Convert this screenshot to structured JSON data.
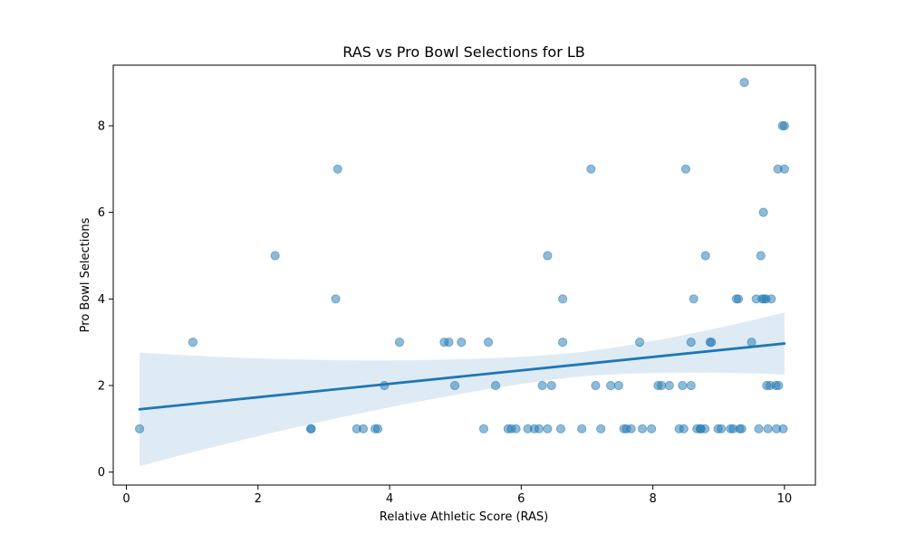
{
  "chart_data": {
    "type": "scatter",
    "title": "RAS vs Pro Bowl Selections for LB",
    "xlabel": "Relative Athletic Score (RAS)",
    "ylabel": "Pro Bowl Selections",
    "xlim": [
      -0.2,
      10.47
    ],
    "ylim": [
      -0.3,
      9.4
    ],
    "xticks": [
      0,
      2,
      4,
      6,
      8,
      10
    ],
    "yticks": [
      0,
      2,
      4,
      6,
      8
    ],
    "grid": false,
    "point_color": "#1f77b4",
    "band_color": "#1f77b4",
    "points": [
      [
        0.2,
        1
      ],
      [
        1.01,
        3
      ],
      [
        2.26,
        5
      ],
      [
        2.8,
        1
      ],
      [
        2.81,
        1
      ],
      [
        3.18,
        4
      ],
      [
        3.21,
        7
      ],
      [
        3.5,
        1
      ],
      [
        3.6,
        1
      ],
      [
        3.78,
        1
      ],
      [
        3.82,
        1
      ],
      [
        3.92,
        2
      ],
      [
        4.15,
        3
      ],
      [
        4.83,
        3
      ],
      [
        4.9,
        3
      ],
      [
        4.99,
        2
      ],
      [
        5.09,
        3
      ],
      [
        5.43,
        1
      ],
      [
        5.5,
        3
      ],
      [
        5.61,
        2
      ],
      [
        5.8,
        1
      ],
      [
        5.85,
        1
      ],
      [
        5.92,
        1
      ],
      [
        6.1,
        1
      ],
      [
        6.2,
        1
      ],
      [
        6.27,
        1
      ],
      [
        6.32,
        2
      ],
      [
        6.4,
        1
      ],
      [
        6.4,
        5
      ],
      [
        6.46,
        2
      ],
      [
        6.6,
        1
      ],
      [
        6.63,
        4
      ],
      [
        6.63,
        3
      ],
      [
        6.92,
        1
      ],
      [
        7.06,
        7
      ],
      [
        7.13,
        2
      ],
      [
        7.21,
        1
      ],
      [
        7.36,
        2
      ],
      [
        7.48,
        2
      ],
      [
        7.56,
        1
      ],
      [
        7.6,
        1
      ],
      [
        7.67,
        1
      ],
      [
        7.8,
        3
      ],
      [
        7.84,
        1
      ],
      [
        7.98,
        1
      ],
      [
        8.08,
        2
      ],
      [
        8.13,
        2
      ],
      [
        8.25,
        2
      ],
      [
        8.4,
        1
      ],
      [
        8.45,
        2
      ],
      [
        8.47,
        1
      ],
      [
        8.5,
        7
      ],
      [
        8.58,
        2
      ],
      [
        8.58,
        3
      ],
      [
        8.62,
        4
      ],
      [
        8.67,
        1
      ],
      [
        8.72,
        1
      ],
      [
        8.73,
        1
      ],
      [
        8.79,
        1
      ],
      [
        8.8,
        5
      ],
      [
        8.87,
        3
      ],
      [
        8.89,
        3
      ],
      [
        8.99,
        1
      ],
      [
        9.04,
        1
      ],
      [
        9.18,
        1
      ],
      [
        9.22,
        1
      ],
      [
        9.27,
        4
      ],
      [
        9.3,
        4
      ],
      [
        9.32,
        1
      ],
      [
        9.35,
        1
      ],
      [
        9.39,
        9
      ],
      [
        9.5,
        3
      ],
      [
        9.57,
        4
      ],
      [
        9.61,
        1
      ],
      [
        9.64,
        5
      ],
      [
        9.66,
        4
      ],
      [
        9.68,
        6
      ],
      [
        9.69,
        4
      ],
      [
        9.72,
        4
      ],
      [
        9.73,
        2
      ],
      [
        9.75,
        1
      ],
      [
        9.78,
        2
      ],
      [
        9.8,
        4
      ],
      [
        9.87,
        2
      ],
      [
        9.88,
        1
      ],
      [
        9.9,
        7
      ],
      [
        9.91,
        2
      ],
      [
        9.97,
        8
      ],
      [
        9.98,
        1
      ],
      [
        10.0,
        8
      ],
      [
        10.0,
        7
      ]
    ],
    "regression": {
      "x": [
        0.2,
        10.0
      ],
      "y": [
        1.45,
        2.97
      ],
      "ci_lower": [
        0.15,
        2.27
      ],
      "ci_upper": [
        2.77,
        3.7
      ]
    }
  }
}
